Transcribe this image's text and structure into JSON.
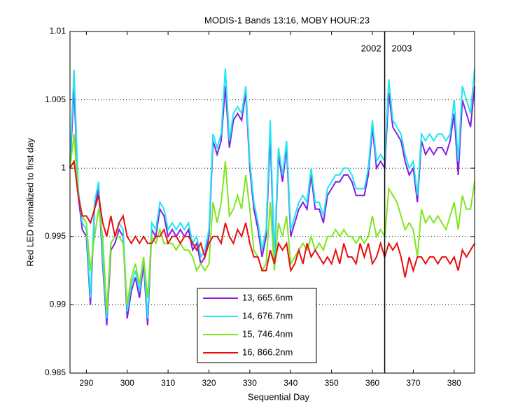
{
  "chart_data": {
    "type": "line",
    "title": "MODIS-1 Bands 13:16, MOBY HOUR:23",
    "x_label": "Sequential Day",
    "y_label": "Red LED normalized to first day",
    "x": [
      286,
      287,
      288,
      289,
      290,
      291,
      292,
      293,
      294,
      295,
      296,
      297,
      298,
      299,
      300,
      301,
      302,
      303,
      304,
      305,
      306,
      307,
      308,
      309,
      310,
      311,
      312,
      313,
      314,
      315,
      316,
      317,
      318,
      319,
      320,
      321,
      322,
      323,
      324,
      325,
      326,
      327,
      328,
      329,
      330,
      331,
      332,
      333,
      334,
      335,
      336,
      337,
      338,
      339,
      340,
      341,
      342,
      343,
      344,
      345,
      346,
      347,
      348,
      349,
      350,
      351,
      352,
      353,
      354,
      355,
      356,
      357,
      358,
      359,
      360,
      361,
      362,
      363,
      364,
      365,
      366,
      367,
      368,
      369,
      370,
      371,
      372,
      373,
      374,
      375,
      376,
      377,
      378,
      379,
      380,
      381,
      382,
      383,
      384,
      385
    ],
    "series": [
      {
        "name": "13, 665.6nm",
        "color": "#7f1fe6",
        "values": [
          1.0,
          1.006,
          0.998,
          0.9955,
          0.995,
          0.99,
          0.997,
          0.9985,
          0.993,
          0.9885,
          0.994,
          0.9945,
          0.9955,
          0.995,
          0.989,
          0.991,
          0.992,
          0.9905,
          0.993,
          0.9885,
          0.9955,
          0.995,
          0.997,
          0.9965,
          0.995,
          0.9955,
          0.995,
          0.9955,
          0.995,
          0.9955,
          0.994,
          0.9945,
          0.993,
          0.9935,
          0.995,
          1.002,
          1.001,
          1.002,
          1.006,
          1.0015,
          1.0035,
          1.004,
          1.0035,
          1.0055,
          1.0,
          0.997,
          0.9955,
          0.9935,
          0.995,
          1.0025,
          0.993,
          1.001,
          0.999,
          1.0015,
          0.995,
          0.996,
          0.997,
          0.9975,
          0.997,
          0.9995,
          0.997,
          0.997,
          0.996,
          0.998,
          0.9985,
          0.999,
          0.999,
          0.9995,
          0.9995,
          0.999,
          0.998,
          0.998,
          0.998,
          0.9995,
          1.003,
          1.0,
          1.0005,
          1.0,
          1.0055,
          1.003,
          1.0025,
          1.002,
          1.0005,
          0.9995,
          1.0,
          0.9975,
          1.002,
          1.001,
          1.0015,
          1.001,
          1.0015,
          1.0015,
          1.001,
          1.002,
          1.004,
          0.9995,
          1.005,
          1.004,
          1.003,
          1.006
        ]
      },
      {
        "name": "14, 676.7nm",
        "color": "#1fe6f0",
        "values": [
          1.0005,
          1.0072,
          0.9985,
          0.996,
          0.9955,
          0.9905,
          0.9975,
          0.999,
          0.9935,
          0.989,
          0.9945,
          0.995,
          0.996,
          0.9955,
          0.9895,
          0.9915,
          0.9925,
          0.991,
          0.9935,
          0.989,
          0.996,
          0.9955,
          0.9975,
          0.997,
          0.9955,
          0.996,
          0.9955,
          0.996,
          0.9955,
          0.996,
          0.9945,
          0.995,
          0.9935,
          0.994,
          0.9955,
          1.0025,
          1.0015,
          1.0025,
          1.0073,
          1.002,
          1.004,
          1.0045,
          1.004,
          1.006,
          1.0005,
          0.9975,
          0.996,
          0.994,
          0.9955,
          1.0035,
          0.9935,
          1.0015,
          0.9995,
          1.002,
          0.9955,
          0.9965,
          0.9975,
          0.998,
          0.9975,
          1.0,
          0.9975,
          0.9975,
          0.9965,
          0.9985,
          0.999,
          0.9995,
          0.9995,
          1.0,
          1.0,
          0.9995,
          0.9985,
          0.9985,
          0.9985,
          1.0,
          1.0035,
          1.0005,
          1.001,
          1.0005,
          1.0065,
          1.0035,
          1.003,
          1.0025,
          1.001,
          1.0,
          1.0005,
          0.998,
          1.0025,
          1.002,
          1.0025,
          1.002,
          1.0025,
          1.0025,
          1.002,
          1.0025,
          1.005,
          1.0005,
          1.006,
          1.005,
          1.004,
          1.0073
        ]
      },
      {
        "name": "15, 746.4nm",
        "color": "#7fe61f",
        "values": [
          1.0,
          1.0025,
          0.998,
          0.9965,
          0.996,
          0.9925,
          0.995,
          0.997,
          0.995,
          0.9895,
          0.9945,
          0.995,
          0.995,
          0.9945,
          0.99,
          0.992,
          0.993,
          0.9915,
          0.9935,
          0.9905,
          0.995,
          0.9945,
          0.9955,
          0.9945,
          0.9945,
          0.9945,
          0.994,
          0.9945,
          0.994,
          0.994,
          0.9935,
          0.9925,
          0.993,
          0.9925,
          0.993,
          0.9975,
          0.996,
          0.9975,
          1.0005,
          0.9965,
          0.997,
          0.998,
          0.997,
          0.9995,
          0.997,
          0.994,
          0.9935,
          0.9925,
          0.993,
          0.9975,
          0.9925,
          0.996,
          0.995,
          0.9965,
          0.993,
          0.9935,
          0.994,
          0.9945,
          0.994,
          0.995,
          0.994,
          0.9945,
          0.994,
          0.995,
          0.995,
          0.9955,
          0.995,
          0.9955,
          0.995,
          0.995,
          0.9945,
          0.995,
          0.9945,
          0.995,
          0.9965,
          0.995,
          0.9955,
          0.995,
          0.9985,
          0.998,
          0.9975,
          0.9965,
          0.9955,
          0.996,
          0.9955,
          0.9935,
          0.997,
          0.996,
          0.9965,
          0.996,
          0.9965,
          0.996,
          0.9955,
          0.9965,
          0.9975,
          0.9955,
          0.998,
          0.997,
          0.997,
          0.999
        ]
      },
      {
        "name": "16, 866.2nm",
        "color": "#e60f0f",
        "values": [
          1.0,
          1.0005,
          0.998,
          0.9965,
          0.9965,
          0.996,
          0.997,
          0.998,
          0.996,
          0.995,
          0.9965,
          0.995,
          0.996,
          0.9965,
          0.995,
          0.9945,
          0.995,
          0.9945,
          0.995,
          0.9945,
          0.9945,
          0.995,
          0.995,
          0.9955,
          0.9945,
          0.995,
          0.995,
          0.9945,
          0.995,
          0.995,
          0.9945,
          0.994,
          0.9945,
          0.9935,
          0.9945,
          0.995,
          0.995,
          0.9945,
          0.996,
          0.995,
          0.9945,
          0.9955,
          0.995,
          0.996,
          0.9945,
          0.9935,
          0.9935,
          0.9925,
          0.9925,
          0.994,
          0.993,
          0.9945,
          0.994,
          0.9945,
          0.9925,
          0.993,
          0.994,
          0.993,
          0.9945,
          0.9935,
          0.994,
          0.9935,
          0.993,
          0.9935,
          0.993,
          0.994,
          0.993,
          0.9945,
          0.9935,
          0.9935,
          0.993,
          0.9945,
          0.9935,
          0.9945,
          0.993,
          0.9935,
          0.9945,
          0.9935,
          0.9945,
          0.994,
          0.9945,
          0.9935,
          0.992,
          0.9935,
          0.9925,
          0.9935,
          0.9935,
          0.993,
          0.9935,
          0.9935,
          0.993,
          0.9935,
          0.9935,
          0.993,
          0.9935,
          0.9925,
          0.994,
          0.9935,
          0.994,
          0.9945
        ]
      }
    ],
    "xlim": [
      286,
      385
    ],
    "ylim": [
      0.985,
      1.01
    ],
    "xticks": [
      290,
      300,
      310,
      320,
      330,
      340,
      350,
      360,
      370,
      380
    ],
    "yticks": [
      0.985,
      0.99,
      0.995,
      1,
      1.005,
      1.01
    ],
    "grid": "y",
    "legend": "lower center",
    "divider": {
      "x": 363,
      "left_label": "2002",
      "right_label": "2003"
    }
  }
}
